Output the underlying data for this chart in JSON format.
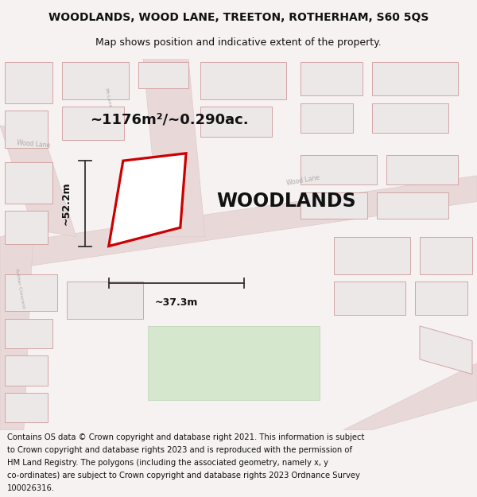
{
  "title_line1": "WOODLANDS, WOOD LANE, TREETON, ROTHERHAM, S60 5QS",
  "title_line2": "Map shows position and indicative extent of the property.",
  "property_label": "WOODLANDS",
  "area_label": "~1176m²/~0.290ac.",
  "width_label": "~37.3m",
  "height_label": "~52.2m",
  "footer_lines": [
    "Contains OS data © Crown copyright and database right 2021. This information is subject",
    "to Crown copyright and database rights 2023 and is reproduced with the permission of",
    "HM Land Registry. The polygons (including the associated geometry, namely x, y",
    "co-ordinates) are subject to Crown copyright and database rights 2023 Ordnance Survey",
    "100026316."
  ],
  "map_bg": "#f7f2f2",
  "road_color": "#e8d8d8",
  "building_fill": "#ede8e8",
  "building_outline": "#d4a4a4",
  "highlight_fill": "#ffffff",
  "highlight_outline": "#cc0000",
  "road_label_color": "#aaaaaa",
  "dim_color": "#222222",
  "title_fontsize": 10,
  "subtitle_fontsize": 9,
  "area_fontsize": 13,
  "property_fontsize": 17,
  "footer_fontsize": 7.2
}
